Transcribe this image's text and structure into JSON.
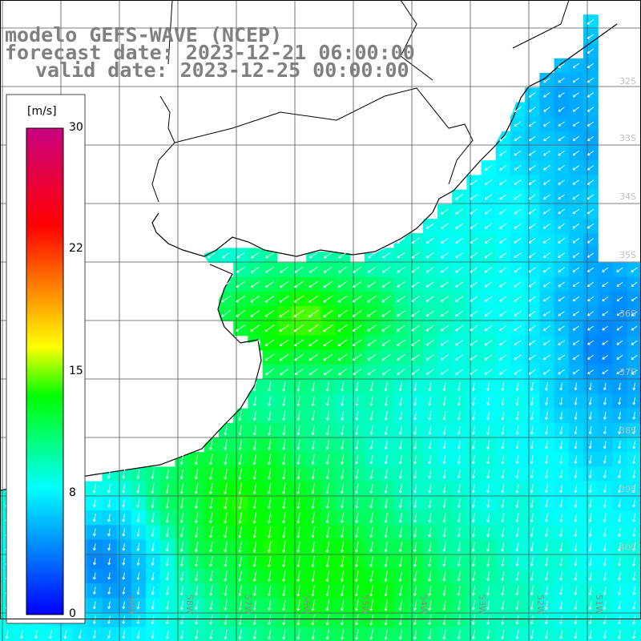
{
  "title": {
    "model": "modelo GEFS-WAVE (NCEP)",
    "forecast": "forecast date: 2023-12-21 06:00:00",
    "valid": "valid date: 2023-12-25 00:00:00"
  },
  "colorbar": {
    "unit": "[m/s]",
    "min": 0,
    "max": 30,
    "ticks": [
      "30",
      "22",
      "15",
      "8",
      "0"
    ],
    "stops": [
      "#0000ff",
      "#00ffff",
      "#00ff00",
      "#ffff00",
      "#ff0000",
      "#c80080"
    ]
  },
  "lat_labels": [
    "32S",
    "33S",
    "34S",
    "35S",
    "36S",
    "37S",
    "38S",
    "39S",
    "40S"
  ],
  "lon_labels": [
    "61W",
    "60W",
    "59W",
    "58W",
    "57W",
    "56W",
    "55W",
    "54W",
    "53W",
    "52W",
    "51W"
  ],
  "colors": {
    "land": "#ffffff",
    "coast": "#000000",
    "grid": "#444444",
    "arrows": "#ffffff",
    "title": "#808080"
  }
}
